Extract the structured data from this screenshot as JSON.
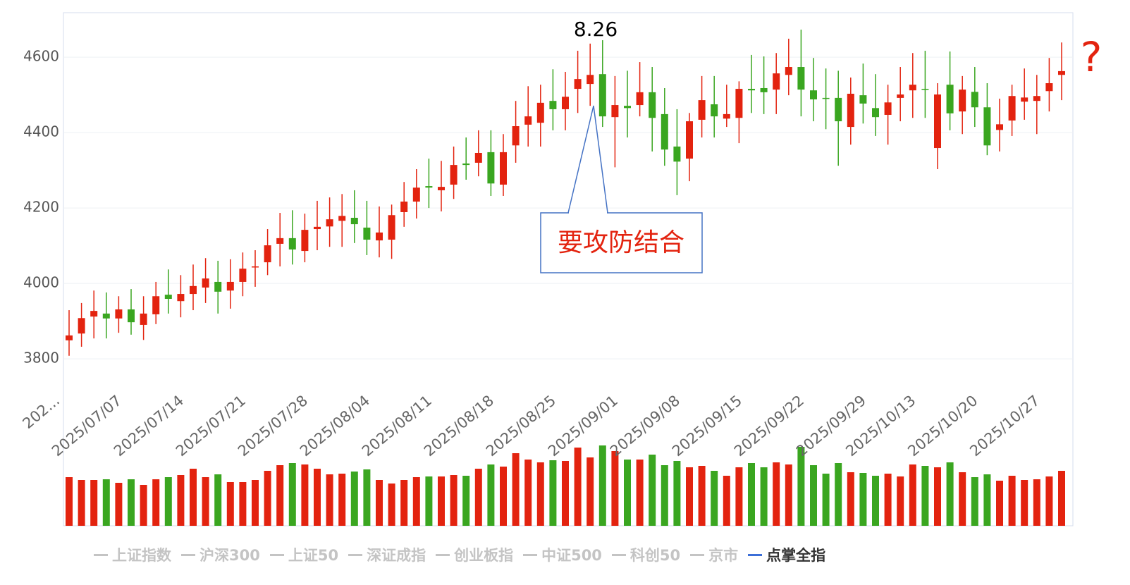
{
  "chart_data": {
    "type": "candlestick",
    "categories": [
      "202...",
      null,
      null,
      null,
      null,
      "2025/07/07",
      null,
      null,
      null,
      null,
      "2025/07/14",
      null,
      null,
      null,
      null,
      "2025/07/21",
      null,
      null,
      null,
      null,
      "2025/07/28",
      null,
      null,
      null,
      null,
      "2025/08/04",
      null,
      null,
      null,
      null,
      "2025/08/11",
      null,
      null,
      null,
      null,
      "2025/08/18",
      null,
      null,
      null,
      null,
      "2025/08/25",
      null,
      null,
      null,
      null,
      "2025/09/01",
      null,
      null,
      null,
      null,
      "2025/09/08",
      null,
      null,
      null,
      null,
      "2025/09/15",
      null,
      null,
      null,
      null,
      "2025/09/22",
      null,
      null,
      null,
      null,
      "2025/09/29",
      null,
      null,
      null,
      "2025/10/13",
      null,
      null,
      null,
      null,
      "2025/10/20",
      null,
      null,
      null,
      null,
      "2025/10/27",
      null
    ],
    "open": [
      3849,
      3867,
      3912,
      3920,
      3907,
      3931,
      3890,
      3918,
      3970,
      3953,
      3972,
      3989,
      4004,
      3981,
      4004,
      4043,
      4056,
      4105,
      4120,
      4086,
      4144,
      4151,
      4166,
      4174,
      4148,
      4114,
      4116,
      4189,
      4217,
      4258,
      4247,
      4262,
      4318,
      4320,
      4348,
      4262,
      4366,
      4421,
      4426,
      4484,
      4462,
      4516,
      4529,
      4555,
      4441,
      4471,
      4473,
      4507,
      4449,
      4363,
      4331,
      4434,
      4475,
      4437,
      4439,
      4516,
      4518,
      4514,
      4553,
      4574,
      4512,
      4492,
      4492,
      4415,
      4499,
      4465,
      4447,
      4492,
      4512,
      4516,
      4359,
      4527,
      4456,
      4508,
      4467,
      4407,
      4432,
      4482,
      4484,
      4510,
      4553
    ],
    "close": [
      3862,
      3908,
      3927,
      3907,
      3931,
      3897,
      3920,
      3966,
      3959,
      3972,
      3993,
      4013,
      3978,
      4004,
      4039,
      4045,
      4101,
      4120,
      4090,
      4142,
      4150,
      4170,
      4179,
      4157,
      4116,
      4135,
      4181,
      4217,
      4254,
      4254,
      4256,
      4314,
      4314,
      4346,
      4265,
      4348,
      4417,
      4443,
      4479,
      4462,
      4495,
      4542,
      4553,
      4443,
      4473,
      4465,
      4507,
      4439,
      4355,
      4323,
      4430,
      4486,
      4443,
      4449,
      4516,
      4512,
      4507,
      4557,
      4574,
      4514,
      4488,
      4490,
      4430,
      4503,
      4477,
      4441,
      4480,
      4501,
      4527,
      4514,
      4501,
      4451,
      4514,
      4467,
      4366,
      4422,
      4497,
      4493,
      4497,
      4531,
      4563
    ],
    "high": [
      3929,
      3948,
      3981,
      3976,
      3966,
      3985,
      3966,
      4004,
      4037,
      4022,
      4050,
      4067,
      4060,
      4064,
      4082,
      4088,
      4144,
      4187,
      4194,
      4185,
      4219,
      4228,
      4237,
      4247,
      4219,
      4204,
      4209,
      4269,
      4303,
      4331,
      4325,
      4363,
      4387,
      4406,
      4406,
      4396,
      4484,
      4523,
      4527,
      4568,
      4561,
      4617,
      4636,
      4645,
      4550,
      4564,
      4587,
      4574,
      4518,
      4462,
      4452,
      4550,
      4550,
      4527,
      4536,
      4606,
      4602,
      4611,
      4649,
      4673,
      4598,
      4570,
      4564,
      4546,
      4583,
      4555,
      4527,
      4574,
      4611,
      4617,
      4531,
      4615,
      4550,
      4574,
      4531,
      4490,
      4527,
      4570,
      4553,
      4598,
      4639
    ],
    "low": [
      3808,
      3832,
      3854,
      3854,
      3869,
      3864,
      3850,
      3892,
      3920,
      3910,
      3929,
      3948,
      3920,
      3933,
      3966,
      3991,
      4022,
      4045,
      4050,
      4056,
      4088,
      4097,
      4097,
      4107,
      4075,
      4069,
      4065,
      4150,
      4172,
      4200,
      4191,
      4224,
      4275,
      4284,
      4232,
      4232,
      4320,
      4363,
      4363,
      4406,
      4406,
      4452,
      4471,
      4415,
      4308,
      4387,
      4443,
      4350,
      4312,
      4234,
      4271,
      4387,
      4387,
      4415,
      4372,
      4452,
      4449,
      4449,
      4499,
      4443,
      4430,
      4409,
      4312,
      4368,
      4424,
      4391,
      4368,
      4430,
      4439,
      4439,
      4303,
      4406,
      4396,
      4415,
      4340,
      4350,
      4391,
      4434,
      4396,
      4456,
      4486
    ],
    "volume": [
      69,
      65,
      65,
      66,
      61,
      66,
      58,
      66,
      69,
      72,
      81,
      69,
      73,
      62,
      62,
      65,
      78,
      86,
      89,
      87,
      81,
      73,
      74,
      77,
      80,
      65,
      60,
      65,
      69,
      70,
      70,
      72,
      71,
      81,
      87,
      84,
      103,
      94,
      90,
      93,
      92,
      111,
      97,
      114,
      106,
      94,
      94,
      101,
      86,
      92,
      83,
      85,
      78,
      71,
      83,
      89,
      83,
      90,
      87,
      112,
      86,
      74,
      89,
      76,
      75,
      71,
      74,
      70,
      87,
      85,
      83,
      90,
      76,
      69,
      73,
      64,
      71,
      65,
      66,
      70,
      78
    ],
    "up_color": "#e3230f",
    "down_color": "#3aa620",
    "ylim": [
      3630,
      4718
    ],
    "yticks": [
      3800,
      4000,
      4200,
      4400,
      4600
    ],
    "vlim": [
      0,
      146
    ],
    "grid": true,
    "legend": {
      "items": [
        "上证指数",
        "沪深300",
        "上证50",
        "深证成指",
        "创业板指",
        "中证500",
        "科创50",
        "京市",
        "点掌全指"
      ],
      "selected": 8
    },
    "annotations": {
      "peak": "8.26",
      "callout": "要攻防结合",
      "question": "?"
    }
  }
}
